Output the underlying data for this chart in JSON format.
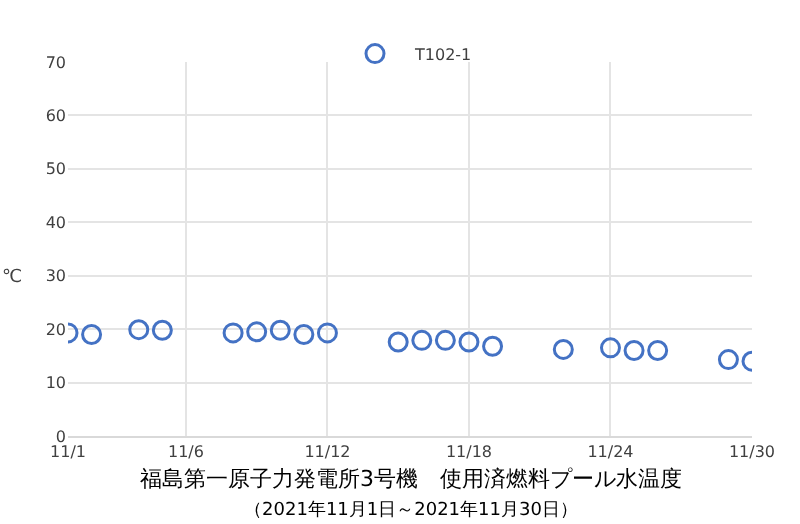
{
  "chart_data": {
    "type": "scatter",
    "title": "福島第一原子力発電所3号機　使用済燃料プール水温度",
    "subtitle": "（2021年11月1日～2021年11月30日）",
    "ylabel": "℃",
    "x": [
      "2021-11-01",
      "2021-11-02",
      "2021-11-04",
      "2021-11-05",
      "2021-11-08",
      "2021-11-09",
      "2021-11-10",
      "2021-11-11",
      "2021-11-12",
      "2021-11-15",
      "2021-11-16",
      "2021-11-17",
      "2021-11-18",
      "2021-11-19",
      "2021-11-22",
      "2021-11-24",
      "2021-11-25",
      "2021-11-26",
      "2021-11-29",
      "2021-11-30"
    ],
    "series": [
      {
        "name": "T102-1",
        "color": "#4472c4",
        "values": [
          19.3,
          19.0,
          19.9,
          19.8,
          19.3,
          19.5,
          19.8,
          19.0,
          19.3,
          17.6,
          17.9,
          17.9,
          17.6,
          16.8,
          16.2,
          16.5,
          16.0,
          16.0,
          14.3,
          14.0
        ]
      }
    ],
    "xlim": [
      "2021-11-01",
      "2021-11-30"
    ],
    "xticks": [
      {
        "value": "2021-11-01",
        "label": "11/1"
      },
      {
        "value": "2021-11-06",
        "label": "11/6"
      },
      {
        "value": "2021-11-12",
        "label": "11/12"
      },
      {
        "value": "2021-11-18",
        "label": "11/18"
      },
      {
        "value": "2021-11-24",
        "label": "11/24"
      },
      {
        "value": "2021-11-30",
        "label": "11/30"
      }
    ],
    "ylim": [
      0,
      70
    ],
    "yticks": [
      0,
      10,
      20,
      30,
      40,
      50,
      60,
      70
    ],
    "grid": true,
    "legend": "top",
    "marker": "circle"
  }
}
